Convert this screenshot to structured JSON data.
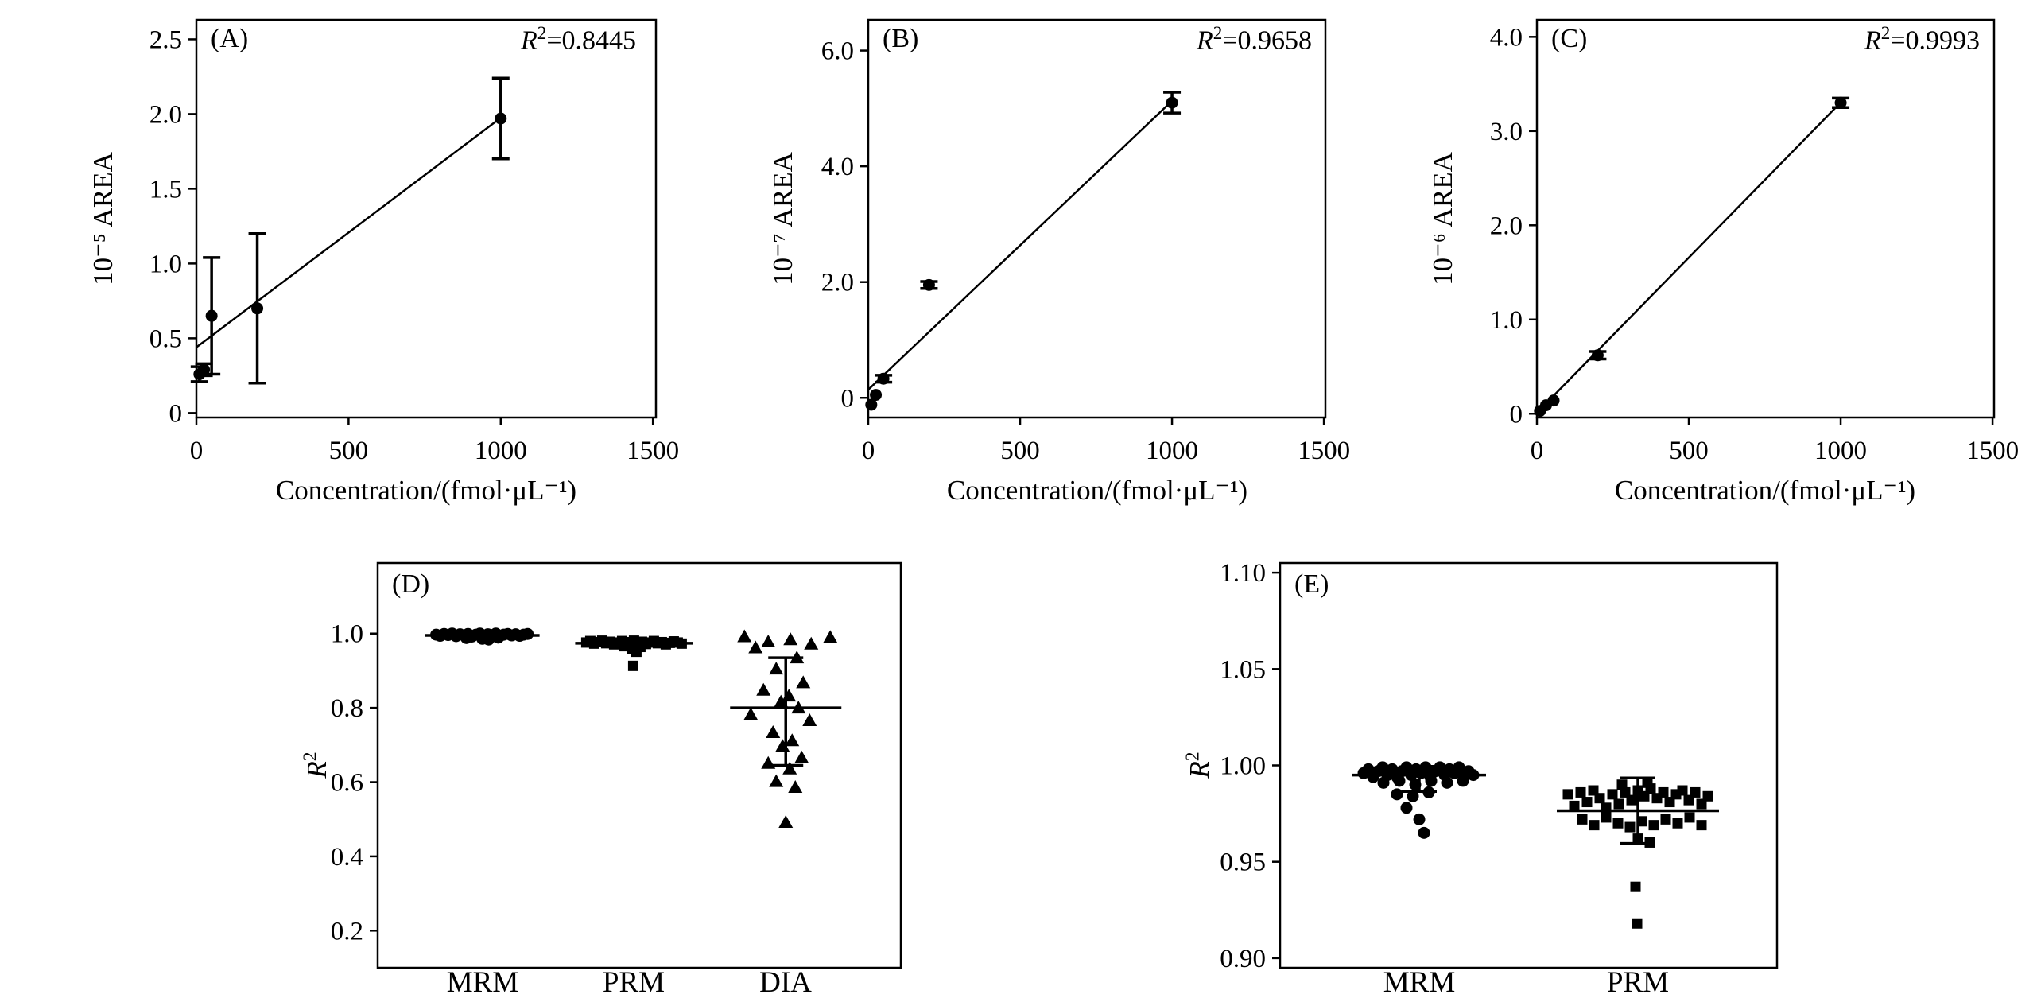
{
  "figure": {
    "background": "#ffffff",
    "ink": "#000000",
    "grid": false
  },
  "chart_data": [
    {
      "id": "A",
      "type": "scatter",
      "panel_label": "(A)",
      "annotation": {
        "r": "R",
        "sup": "2",
        "rest": "=0.8445"
      },
      "xlabel": "Concentration/(fmol·μL⁻¹)",
      "ylabel": "10⁻⁵ AREA",
      "xlim": [
        0,
        1510
      ],
      "ylim": [
        -0.03,
        2.63
      ],
      "xticks": {
        "values": [
          0,
          500,
          1000,
          1500
        ],
        "labels": [
          "0",
          "500",
          "1000",
          "1500"
        ]
      },
      "yticks": {
        "values": [
          0,
          0.5,
          1.0,
          1.5,
          2.0,
          2.5
        ],
        "labels": [
          "0",
          "0.5",
          "1.0",
          "1.5",
          "2.0",
          "2.5"
        ]
      },
      "marker": "circle",
      "points": [
        {
          "x": 10,
          "y": 0.26,
          "err": 0.05
        },
        {
          "x": 25,
          "y": 0.29,
          "err": 0.04
        },
        {
          "x": 50,
          "y": 0.65,
          "err": 0.39
        },
        {
          "x": 200,
          "y": 0.7,
          "err": 0.5
        },
        {
          "x": 1000,
          "y": 1.97,
          "err": 0.27
        }
      ],
      "fit_line": {
        "x1": 0,
        "y1": 0.44,
        "x2": 1010,
        "y2": 1.99
      }
    },
    {
      "id": "B",
      "type": "scatter",
      "panel_label": "(B)",
      "annotation": {
        "r": "R",
        "sup": "2",
        "rest": "=0.9658"
      },
      "xlabel": "Concentration/(fmol·μL⁻¹)",
      "ylabel": "10⁻⁷ AREA",
      "xlim": [
        0,
        1505
      ],
      "ylim": [
        -0.34,
        6.53
      ],
      "xticks": {
        "values": [
          0,
          500,
          1000,
          1500
        ],
        "labels": [
          "0",
          "500",
          "1000",
          "1500"
        ]
      },
      "yticks": {
        "values": [
          0,
          2.0,
          4.0,
          6.0
        ],
        "labels": [
          "0",
          "2.0",
          "4.0",
          "6.0"
        ]
      },
      "marker": "circle",
      "points": [
        {
          "x": 10,
          "y": -0.12,
          "err": 0
        },
        {
          "x": 25,
          "y": 0.05,
          "err": 0
        },
        {
          "x": 50,
          "y": 0.33,
          "err": 0.06
        },
        {
          "x": 200,
          "y": 1.95,
          "err": 0.06
        },
        {
          "x": 1000,
          "y": 5.1,
          "err": 0.18
        }
      ],
      "fit_line": {
        "x1": 0,
        "y1": 0.14,
        "x2": 1010,
        "y2": 5.18
      }
    },
    {
      "id": "C",
      "type": "scatter",
      "panel_label": "(C)",
      "annotation": {
        "r": "R",
        "sup": "2",
        "rest": "=0.9993"
      },
      "xlabel": "Concentration/(fmol·μL⁻¹)",
      "ylabel": "10⁻⁶ AREA",
      "xlim": [
        0,
        1505
      ],
      "ylim": [
        -0.04,
        4.18
      ],
      "xticks": {
        "values": [
          0,
          500,
          1000,
          1500
        ],
        "labels": [
          "0",
          "500",
          "1000",
          "1500"
        ]
      },
      "yticks": {
        "values": [
          0,
          1.0,
          2.0,
          3.0,
          4.0
        ],
        "labels": [
          "0",
          "1.0",
          "2.0",
          "3.0",
          "4.0"
        ]
      },
      "marker": "circle",
      "points": [
        {
          "x": 10,
          "y": 0.03,
          "err": 0
        },
        {
          "x": 30,
          "y": 0.09,
          "err": 0
        },
        {
          "x": 55,
          "y": 0.14,
          "err": 0
        },
        {
          "x": 200,
          "y": 0.62,
          "err": 0.04
        },
        {
          "x": 1000,
          "y": 3.3,
          "err": 0.05
        }
      ],
      "fit_line": {
        "x1": 0,
        "y1": 0.01,
        "x2": 1005,
        "y2": 3.32
      }
    },
    {
      "id": "D",
      "type": "beeswarm",
      "panel_label": "(D)",
      "ylabel": {
        "r": "R",
        "sup": "2"
      },
      "ylim": [
        0.1,
        1.19
      ],
      "yticks": {
        "values": [
          0.2,
          0.4,
          0.6,
          0.8,
          1.0
        ],
        "labels": [
          "0.2",
          "0.4",
          "0.6",
          "0.8",
          "1.0"
        ]
      },
      "categories": [
        {
          "label": "MRM",
          "marker": "circle",
          "mean": 0.995,
          "err_low": null,
          "err_high": null,
          "points": [
            [
              -58,
              0.997
            ],
            [
              -53,
              0.994
            ],
            [
              -48,
              0.999
            ],
            [
              -43,
              0.996
            ],
            [
              -38,
              1.0
            ],
            [
              -33,
              0.993
            ],
            [
              -28,
              0.998
            ],
            [
              -23,
              0.995
            ],
            [
              -18,
              0.999
            ],
            [
              -13,
              0.992
            ],
            [
              -8,
              0.997
            ],
            [
              -3,
              1.0
            ],
            [
              2,
              0.994
            ],
            [
              7,
              0.998
            ],
            [
              12,
              0.996
            ],
            [
              17,
              1.0
            ],
            [
              22,
              0.993
            ],
            [
              27,
              0.997
            ],
            [
              32,
              0.999
            ],
            [
              37,
              0.995
            ],
            [
              42,
              0.998
            ],
            [
              47,
              0.994
            ],
            [
              52,
              0.997
            ],
            [
              57,
              0.999
            ],
            [
              -20,
              0.988
            ],
            [
              0,
              0.986
            ],
            [
              20,
              0.989
            ],
            [
              8,
              0.984
            ]
          ]
        },
        {
          "label": "PRM",
          "marker": "square",
          "mean": 0.974,
          "err_low": null,
          "err_high": null,
          "points": [
            [
              -60,
              0.976
            ],
            [
              -55,
              0.98
            ],
            [
              -50,
              0.973
            ],
            [
              -45,
              0.977
            ],
            [
              -40,
              0.981
            ],
            [
              -35,
              0.974
            ],
            [
              -30,
              0.978
            ],
            [
              -25,
              0.971
            ],
            [
              -20,
              0.976
            ],
            [
              -15,
              0.98
            ],
            [
              -10,
              0.973
            ],
            [
              -5,
              0.977
            ],
            [
              0,
              0.981
            ],
            [
              5,
              0.974
            ],
            [
              10,
              0.978
            ],
            [
              15,
              0.972
            ],
            [
              20,
              0.976
            ],
            [
              25,
              0.98
            ],
            [
              30,
              0.974
            ],
            [
              35,
              0.977
            ],
            [
              40,
              0.971
            ],
            [
              45,
              0.975
            ],
            [
              50,
              0.979
            ],
            [
              55,
              0.976
            ],
            [
              60,
              0.973
            ],
            [
              -12,
              0.966
            ],
            [
              8,
              0.964
            ],
            [
              -2,
              0.958
            ],
            [
              3,
              0.951
            ],
            [
              -1,
              0.913
            ]
          ]
        },
        {
          "label": "DIA",
          "marker": "triangle",
          "mean": 0.8,
          "err_low": 0.645,
          "err_high": 0.935,
          "points": [
            [
              -52,
              0.992
            ],
            [
              -22,
              0.978
            ],
            [
              6,
              0.984
            ],
            [
              32,
              0.972
            ],
            [
              56,
              0.99
            ],
            [
              -38,
              0.962
            ],
            [
              14,
              0.935
            ],
            [
              -12,
              0.905
            ],
            [
              22,
              0.868
            ],
            [
              -28,
              0.848
            ],
            [
              4,
              0.832
            ],
            [
              -6,
              0.816
            ],
            [
              16,
              0.8
            ],
            [
              -44,
              0.782
            ],
            [
              30,
              0.766
            ],
            [
              -16,
              0.734
            ],
            [
              8,
              0.712
            ],
            [
              -4,
              0.697
            ],
            [
              20,
              0.666
            ],
            [
              -22,
              0.651
            ],
            [
              5,
              0.636
            ],
            [
              -12,
              0.602
            ],
            [
              12,
              0.586
            ],
            [
              0,
              0.492
            ]
          ]
        }
      ]
    },
    {
      "id": "E",
      "type": "beeswarm",
      "panel_label": "(E)",
      "ylabel": {
        "r": "R",
        "sup": "2"
      },
      "ylim": [
        0.895,
        1.105
      ],
      "yticks": {
        "values": [
          0.9,
          0.95,
          1.0,
          1.05,
          1.1
        ],
        "labels": [
          "0.90",
          "0.95",
          "1.00",
          "1.05",
          "1.10"
        ]
      },
      "categories": [
        {
          "label": "MRM",
          "marker": "circle",
          "mean": 0.995,
          "err_low": 0.9865,
          "err_high": 0.9995,
          "points": [
            [
              -70,
              0.996
            ],
            [
              -64,
              0.998
            ],
            [
              -58,
              0.994
            ],
            [
              -52,
              0.997
            ],
            [
              -46,
              0.999
            ],
            [
              -40,
              0.995
            ],
            [
              -34,
              0.998
            ],
            [
              -28,
              0.994
            ],
            [
              -22,
              0.997
            ],
            [
              -16,
              0.999
            ],
            [
              -10,
              0.995
            ],
            [
              -4,
              0.998
            ],
            [
              2,
              0.996
            ],
            [
              8,
              0.999
            ],
            [
              14,
              0.994
            ],
            [
              20,
              0.997
            ],
            [
              26,
              0.999
            ],
            [
              32,
              0.995
            ],
            [
              38,
              0.998
            ],
            [
              44,
              0.996
            ],
            [
              50,
              0.999
            ],
            [
              56,
              0.994
            ],
            [
              62,
              0.997
            ],
            [
              68,
              0.995
            ],
            [
              -45,
              0.991
            ],
            [
              -25,
              0.992
            ],
            [
              -5,
              0.99
            ],
            [
              15,
              0.992
            ],
            [
              35,
              0.991
            ],
            [
              55,
              0.992
            ],
            [
              -28,
              0.985
            ],
            [
              -8,
              0.984
            ],
            [
              12,
              0.986
            ],
            [
              -16,
              0.978
            ],
            [
              0,
              0.972
            ],
            [
              6,
              0.965
            ]
          ]
        },
        {
          "label": "PRM",
          "marker": "square",
          "mean": 0.9765,
          "err_low": 0.9595,
          "err_high": 0.9935,
          "points": [
            [
              -88,
              0.985
            ],
            [
              -80,
              0.979
            ],
            [
              -72,
              0.986
            ],
            [
              -64,
              0.981
            ],
            [
              -56,
              0.987
            ],
            [
              -48,
              0.983
            ],
            [
              -40,
              0.978
            ],
            [
              -32,
              0.985
            ],
            [
              -24,
              0.98
            ],
            [
              -16,
              0.986
            ],
            [
              -8,
              0.982
            ],
            [
              0,
              0.987
            ],
            [
              8,
              0.984
            ],
            [
              16,
              0.988
            ],
            [
              24,
              0.983
            ],
            [
              32,
              0.986
            ],
            [
              40,
              0.981
            ],
            [
              48,
              0.985
            ],
            [
              56,
              0.987
            ],
            [
              64,
              0.982
            ],
            [
              72,
              0.986
            ],
            [
              80,
              0.98
            ],
            [
              88,
              0.984
            ],
            [
              -70,
              0.972
            ],
            [
              -55,
              0.969
            ],
            [
              -40,
              0.973
            ],
            [
              -25,
              0.97
            ],
            [
              -10,
              0.968
            ],
            [
              5,
              0.971
            ],
            [
              20,
              0.969
            ],
            [
              35,
              0.972
            ],
            [
              50,
              0.97
            ],
            [
              65,
              0.973
            ],
            [
              80,
              0.969
            ],
            [
              -20,
              0.99
            ],
            [
              12,
              0.991
            ],
            [
              0,
              0.962
            ],
            [
              15,
              0.96
            ],
            [
              -3,
              0.937
            ],
            [
              -1,
              0.918
            ]
          ]
        }
      ]
    }
  ]
}
